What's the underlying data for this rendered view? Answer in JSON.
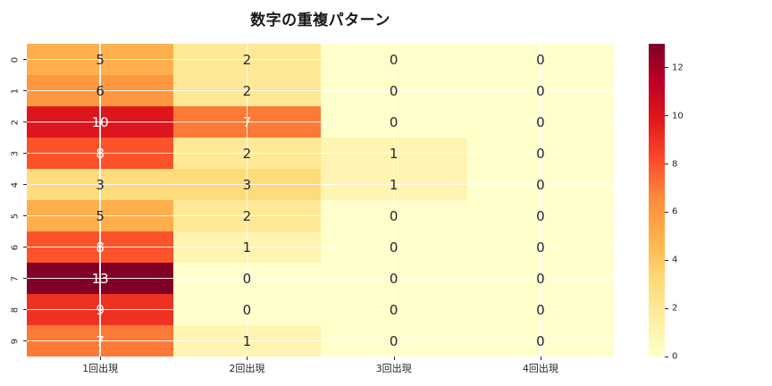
{
  "figure": {
    "background": "#ffffff",
    "text_color": "#262626"
  },
  "chart_data": {
    "type": "heatmap",
    "title": "数字の重複パターン",
    "x_categories": [
      "1回出現",
      "2回出現",
      "3回出現",
      "4回出現"
    ],
    "y_categories": [
      "0",
      "1",
      "2",
      "3",
      "4",
      "5",
      "6",
      "7",
      "8",
      "9"
    ],
    "values": [
      [
        5,
        2,
        0,
        0
      ],
      [
        6,
        2,
        0,
        0
      ],
      [
        10,
        7,
        0,
        0
      ],
      [
        8,
        2,
        1,
        0
      ],
      [
        3,
        3,
        1,
        0
      ],
      [
        5,
        2,
        0,
        0
      ],
      [
        8,
        1,
        0,
        0
      ],
      [
        13,
        0,
        0,
        0
      ],
      [
        9,
        0,
        0,
        0
      ],
      [
        7,
        1,
        0,
        0
      ]
    ],
    "vmin": 0,
    "vmax": 13,
    "colormap": "YlOrRd",
    "colormap_anchors": [
      "#ffffcc",
      "#ffeda0",
      "#fed976",
      "#feb24c",
      "#fd8d3c",
      "#fc4e2a",
      "#e31a1c",
      "#bd0026",
      "#800026"
    ],
    "value_colors": {
      "0": "#ffffcc",
      "1": "#fff4b1",
      "2": "#ffe896",
      "3": "#fedc7c",
      "4": "#fec763",
      "5": "#feaf4b",
      "6": "#fd9841",
      "7": "#fd7a36",
      "8": "#fc532b",
      "9": "#ee3222",
      "10": "#dd161e",
      "11": "#c60624",
      "12": "#a60026",
      "13": "#800026"
    },
    "annotation_white_text_min": 7,
    "annotation_color_dark": "#262626",
    "annotation_color_light": "#ffffff",
    "colorbar_ticks": [
      0,
      2,
      4,
      6,
      8,
      10,
      12
    ],
    "grid": true,
    "grid_color": "#ffffff",
    "legend_position": "right-colorbar"
  }
}
